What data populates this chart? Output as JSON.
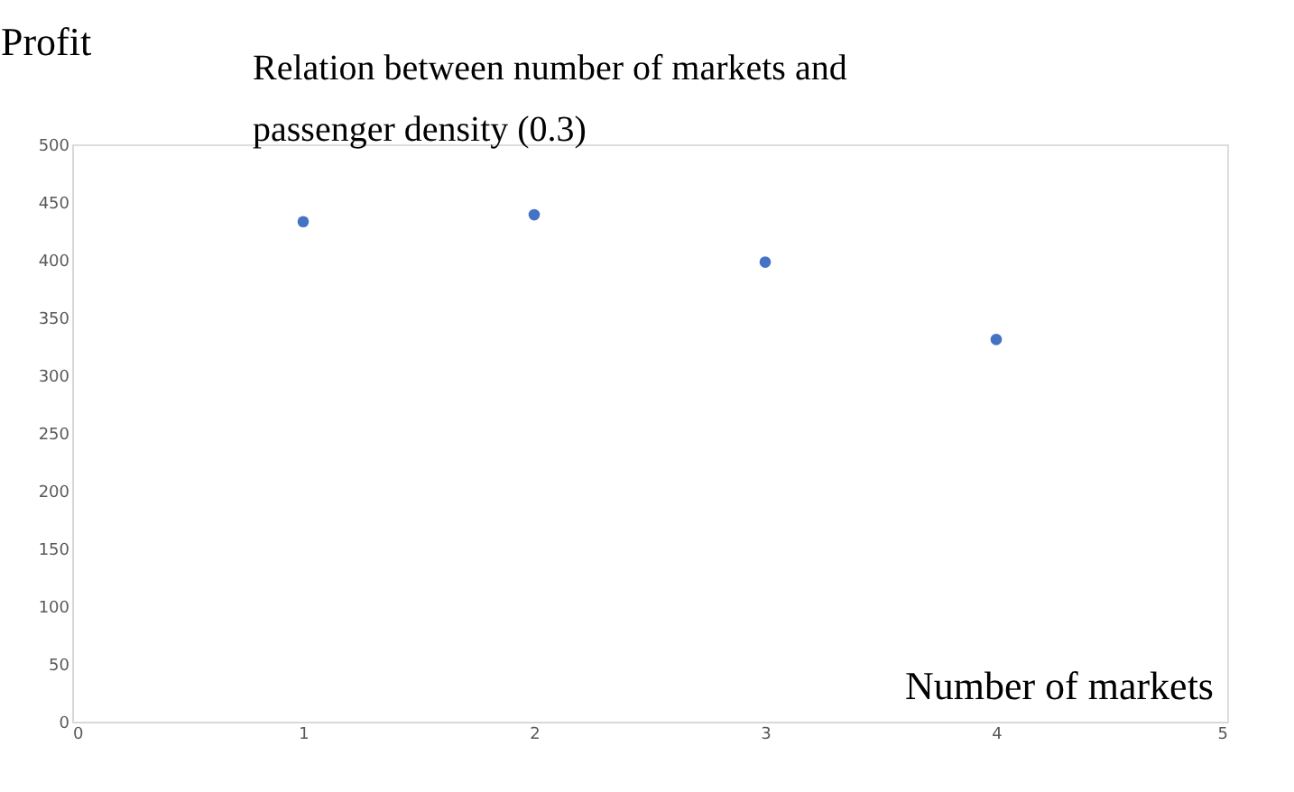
{
  "chart_data": {
    "type": "scatter",
    "title": "Relation between number of markets and passenger density (0.3)",
    "xlabel": "Number of markets",
    "ylabel": "Profit",
    "x": [
      1,
      2,
      3,
      4
    ],
    "values": [
      433,
      439,
      398,
      331
    ],
    "color": "#4472c4",
    "marker": "circle",
    "xlim": [
      0,
      5
    ],
    "xticks": [
      0,
      1,
      2,
      3,
      4,
      5
    ],
    "ylim": [
      0,
      500
    ],
    "yticks": [
      0,
      50,
      100,
      150,
      200,
      250,
      300,
      350,
      400,
      450,
      500
    ],
    "grid": false
  }
}
